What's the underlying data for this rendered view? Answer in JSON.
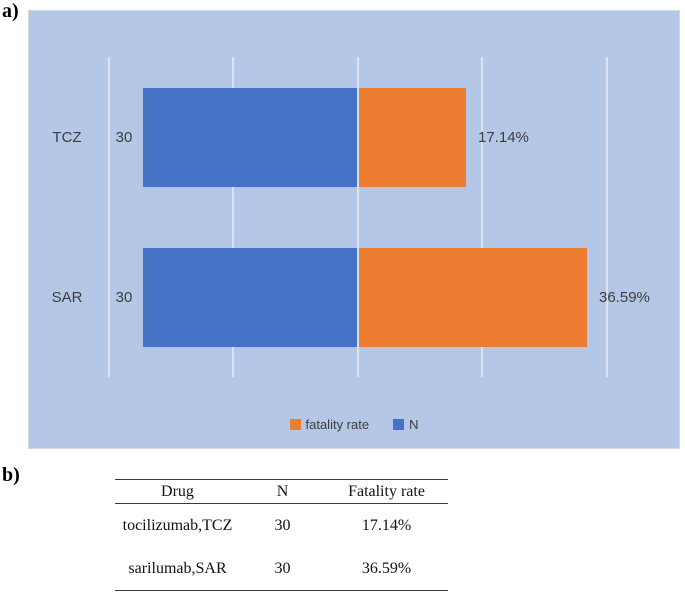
{
  "panel_a": {
    "label": "a)"
  },
  "panel_b": {
    "label": "b)"
  },
  "chart_data": {
    "type": "bar",
    "orientation": "horizontal",
    "stacked": true,
    "title": "",
    "xlabel": "",
    "ylabel": "",
    "grid": true,
    "plot_background": "#b4c7e7",
    "gridline_color": "#dde2ee",
    "categories": [
      "TCZ",
      "SAR"
    ],
    "series": [
      {
        "name": "N",
        "color": "#4472c4",
        "values": [
          30,
          30
        ]
      },
      {
        "name": "fatality rate",
        "color": "#ed7d31",
        "values": [
          17.14,
          36.59
        ]
      }
    ],
    "value_labels": {
      "n": [
        "30",
        "30"
      ],
      "fatality": [
        "17.14%",
        "36.59%"
      ]
    },
    "legend": {
      "position": "bottom",
      "items": [
        {
          "label": "fatality rate",
          "color": "#ed7d31"
        },
        {
          "label": "N",
          "color": "#4472c4"
        }
      ]
    }
  },
  "table": {
    "headers": [
      "Drug",
      "N",
      "Fatality rate"
    ],
    "rows": [
      {
        "drug": "tocilizumab,TCZ",
        "n": "30",
        "fatality_rate": "17.14%"
      },
      {
        "drug": "sarilumab,SAR",
        "n": "30",
        "fatality_rate": "36.59%"
      }
    ]
  }
}
